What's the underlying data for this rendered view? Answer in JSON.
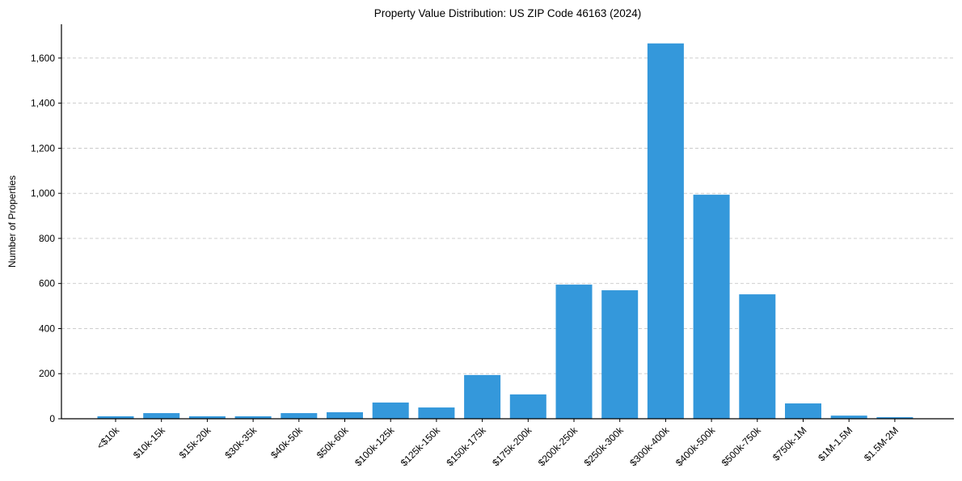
{
  "chart_data": {
    "type": "bar",
    "title": "Property Value Distribution: US ZIP Code 46163 (2024)",
    "xlabel": "",
    "ylabel": "Number of Properties",
    "ylim": [
      0,
      1750
    ],
    "yticks": [
      0,
      200,
      400,
      600,
      800,
      1000,
      1200,
      1400,
      1600
    ],
    "ytick_labels": [
      "0",
      "200",
      "400",
      "600",
      "800",
      "1,000",
      "1,200",
      "1,400",
      "1,600"
    ],
    "grid": "y dashed",
    "color": "#3498db",
    "categories": [
      "<$10k",
      "$10k-15k",
      "$15k-20k",
      "$30k-35k",
      "$40k-50k",
      "$50k-60k",
      "$100k-125k",
      "$125k-150k",
      "$150k-175k",
      "$175k-200k",
      "$200k-250k",
      "$250k-300k",
      "$300k-400k",
      "$400k-500k",
      "$500k-750k",
      "$750k-1M",
      "$1M-1.5M",
      "$1.5M-2M"
    ],
    "values": [
      11,
      25,
      11,
      11,
      25,
      29,
      72,
      50,
      194,
      108,
      595,
      570,
      1665,
      994,
      552,
      68,
      14,
      7
    ]
  }
}
